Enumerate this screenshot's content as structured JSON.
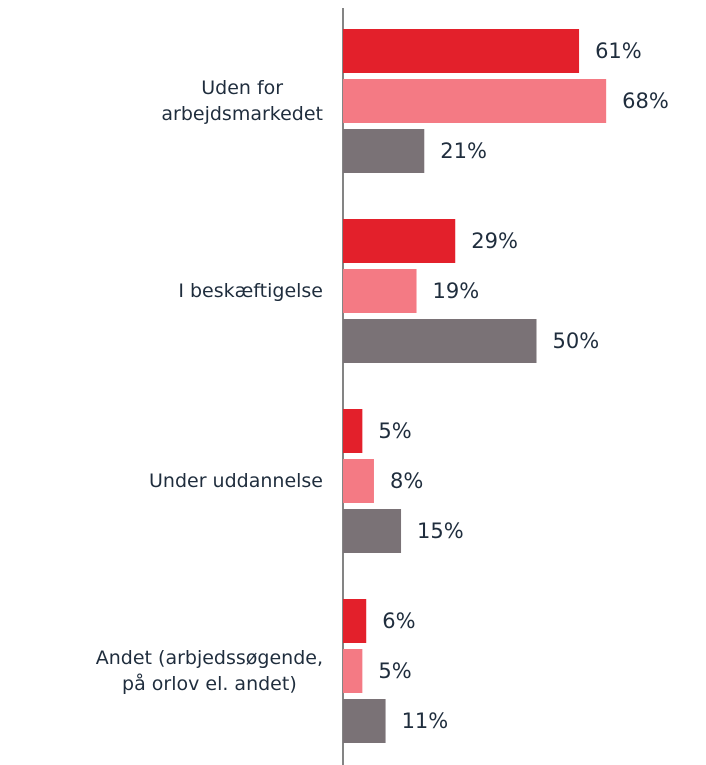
{
  "chart_data": {
    "type": "bar",
    "orientation": "horizontal",
    "categories": [
      "Uden for\narbejdsmarkedet",
      "I beskæftigelse",
      "Under uddannelse",
      "Andet (arbjedssøgende,\npå orlov el. andet)"
    ],
    "series": [
      {
        "color": "#e3202b",
        "values": [
          61,
          29,
          5,
          6
        ],
        "value_labels": [
          "61%",
          "29%",
          "5%",
          "6%"
        ]
      },
      {
        "color": "#f47a84",
        "values": [
          68,
          19,
          8,
          5
        ],
        "value_labels": [
          "68%",
          "19%",
          "8%",
          "5%"
        ]
      },
      {
        "color": "#7a7276",
        "values": [
          21,
          50,
          15,
          11
        ],
        "value_labels": [
          "21%",
          "50%",
          "15%",
          "11%"
        ]
      }
    ]
  }
}
